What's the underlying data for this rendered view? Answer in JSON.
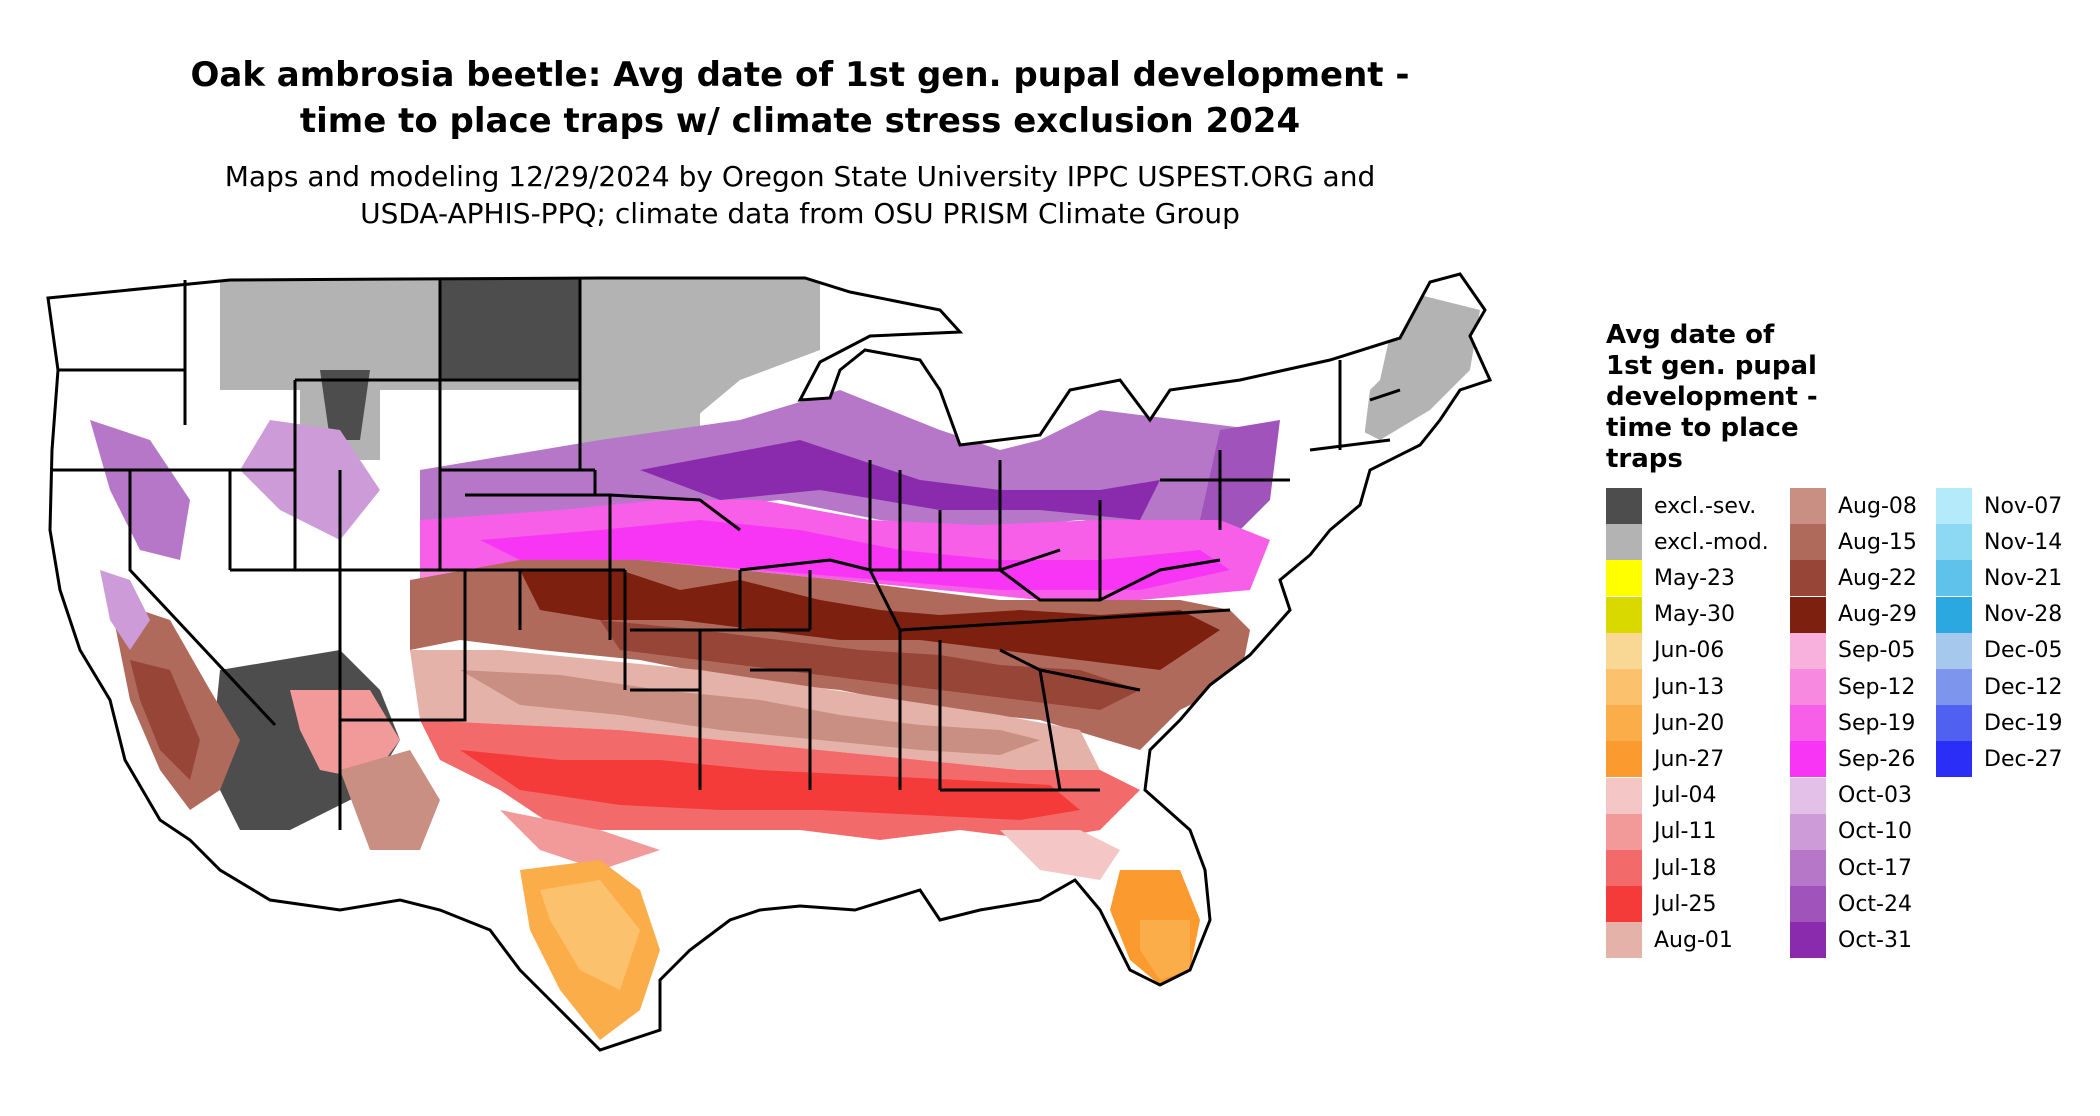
{
  "title_line1": "Oak ambrosia beetle: Avg date of 1st gen. pupal development -",
  "title_line2": "time to place traps w/ climate stress exclusion 2024",
  "subtitle_line1": "Maps and modeling 12/29/2024 by Oregon State University IPPC USPEST.ORG and",
  "subtitle_line2": "USDA-APHIS-PPQ; climate data from OSU PRISM Climate Group",
  "legend": {
    "title_lines": [
      "Avg date of",
      "1st gen. pupal",
      "development -",
      "time to place",
      "traps"
    ],
    "items": [
      {
        "label": "excl.-sev.",
        "color": "#4d4d4d"
      },
      {
        "label": "excl.-mod.",
        "color": "#b3b3b3"
      },
      {
        "label": "May-23",
        "color": "#ffff00"
      },
      {
        "label": "May-30",
        "color": "#d9d900"
      },
      {
        "label": "Jun-06",
        "color": "#f9d794"
      },
      {
        "label": "Jun-13",
        "color": "#fcc16c"
      },
      {
        "label": "Jun-20",
        "color": "#fbad4a"
      },
      {
        "label": "Jun-27",
        "color": "#fb9a2e"
      },
      {
        "label": "Jul-04",
        "color": "#f4c6c6"
      },
      {
        "label": "Jul-11",
        "color": "#f29a9a"
      },
      {
        "label": "Jul-18",
        "color": "#f36a6a"
      },
      {
        "label": "Jul-25",
        "color": "#f53a3a"
      },
      {
        "label": "Aug-01",
        "color": "#e4b2a8"
      },
      {
        "label": "Aug-08",
        "color": "#c88f82"
      },
      {
        "label": "Aug-15",
        "color": "#b06a5c"
      },
      {
        "label": "Aug-22",
        "color": "#974537"
      },
      {
        "label": "Aug-29",
        "color": "#7d2010"
      },
      {
        "label": "Sep-05",
        "color": "#f7b1dc"
      },
      {
        "label": "Sep-12",
        "color": "#f789e0"
      },
      {
        "label": "Sep-19",
        "color": "#f85fe8"
      },
      {
        "label": "Sep-26",
        "color": "#f835f5"
      },
      {
        "label": "Oct-03",
        "color": "#e2c0e8"
      },
      {
        "label": "Oct-10",
        "color": "#cc9bd8"
      },
      {
        "label": "Oct-17",
        "color": "#b677c9"
      },
      {
        "label": "Oct-24",
        "color": "#a053bb"
      },
      {
        "label": "Oct-31",
        "color": "#8a2aad"
      },
      {
        "label": "Nov-07",
        "color": "#b5eafb"
      },
      {
        "label": "Nov-14",
        "color": "#8dd8f3"
      },
      {
        "label": "Nov-21",
        "color": "#5fc2ea"
      },
      {
        "label": "Nov-28",
        "color": "#2aa8df"
      },
      {
        "label": "Dec-05",
        "color": "#a5c8ec"
      },
      {
        "label": "Dec-12",
        "color": "#7d95ed"
      },
      {
        "label": "Dec-19",
        "color": "#5061f1"
      },
      {
        "label": "Dec-27",
        "color": "#2a2ef7"
      }
    ]
  }
}
